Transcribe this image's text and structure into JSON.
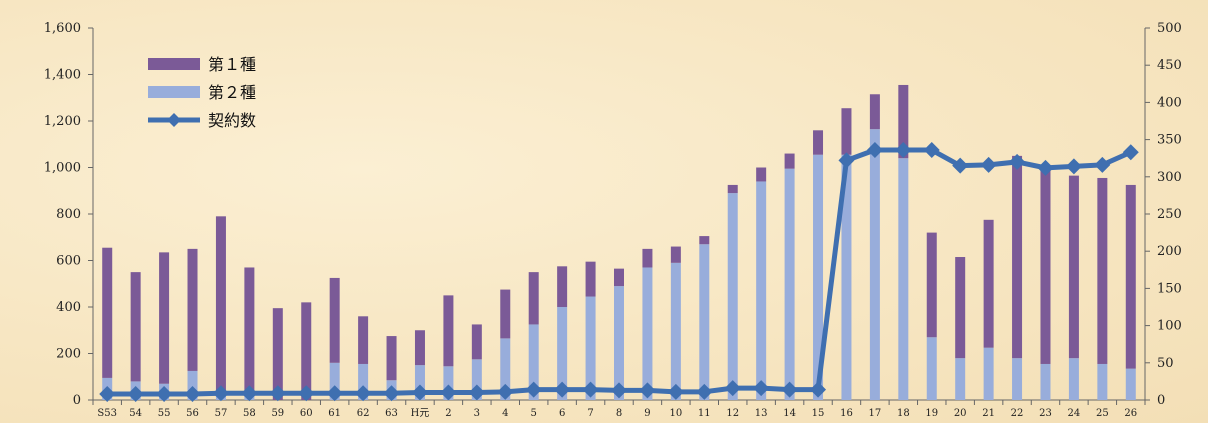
{
  "chart_data": {
    "type": "bar",
    "categories": [
      "S53",
      "54",
      "55",
      "56",
      "57",
      "58",
      "59",
      "60",
      "61",
      "62",
      "63",
      "H元",
      "2",
      "3",
      "4",
      "5",
      "6",
      "7",
      "8",
      "9",
      "10",
      "11",
      "12",
      "13",
      "14",
      "15",
      "16",
      "17",
      "18",
      "19",
      "20",
      "21",
      "22",
      "23",
      "24",
      "25",
      "26"
    ],
    "series": [
      {
        "name": "第１種",
        "kind": "bar",
        "axis": "left",
        "color": "#7b5a97",
        "values": [
          560,
          470,
          565,
          525,
          775,
          555,
          395,
          420,
          365,
          205,
          190,
          150,
          305,
          150,
          210,
          225,
          175,
          150,
          75,
          80,
          70,
          35,
          35,
          60,
          65,
          105,
          200,
          150,
          315,
          450,
          435,
          550,
          870,
          840,
          785,
          800,
          790
        ]
      },
      {
        "name": "第２種",
        "kind": "bar",
        "axis": "left",
        "color": "#98addb",
        "values": [
          95,
          80,
          70,
          125,
          15,
          15,
          0,
          0,
          160,
          155,
          85,
          150,
          145,
          175,
          265,
          325,
          400,
          445,
          490,
          570,
          590,
          670,
          890,
          940,
          995,
          1055,
          1055,
          1165,
          1040,
          270,
          180,
          225,
          180,
          155,
          180,
          155,
          135
        ]
      },
      {
        "name": "契約数",
        "kind": "line",
        "axis": "right",
        "color": "#3f6fb0",
        "values": [
          8,
          8,
          8,
          8,
          9,
          9,
          9,
          9,
          9,
          9,
          9,
          10,
          10,
          10,
          11,
          14,
          14,
          14,
          13,
          13,
          11,
          11,
          16,
          16,
          14,
          14,
          322,
          336,
          336,
          336,
          315,
          316,
          320,
          312,
          314,
          316,
          333
        ]
      }
    ],
    "left_axis": {
      "ylim": [
        0,
        1600
      ],
      "ticks": [
        "0",
        "200",
        "400",
        "600",
        "800",
        "1,000",
        "1,200",
        "1,400",
        "1,600"
      ],
      "tick_values": [
        0,
        200,
        400,
        600,
        800,
        1000,
        1200,
        1400,
        1600
      ]
    },
    "right_axis": {
      "ylim": [
        0,
        500
      ],
      "ticks": [
        "0",
        "50",
        "100",
        "150",
        "200",
        "250",
        "300",
        "350",
        "400",
        "450",
        "500"
      ],
      "tick_values": [
        0,
        50,
        100,
        150,
        200,
        250,
        300,
        350,
        400,
        450,
        500
      ]
    },
    "stacked": true,
    "legend_position": "top-left",
    "grid": false
  }
}
